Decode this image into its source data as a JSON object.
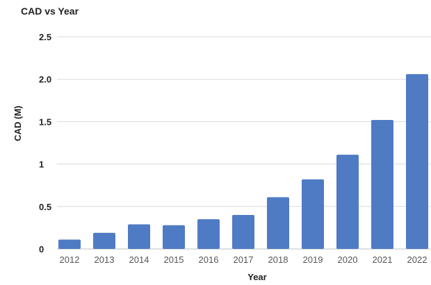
{
  "chart_data": {
    "type": "bar",
    "title": "CAD vs Year",
    "xlabel": "Year",
    "ylabel": "CAD (M)",
    "categories": [
      "2012",
      "2013",
      "2014",
      "2015",
      "2016",
      "2017",
      "2018",
      "2019",
      "2020",
      "2021",
      "2022"
    ],
    "values": [
      0.11,
      0.19,
      0.29,
      0.28,
      0.35,
      0.4,
      0.61,
      0.82,
      1.11,
      1.52,
      2.06
    ],
    "ylim": [
      0,
      2.5
    ],
    "yticks": [
      {
        "value": 0,
        "label": "0"
      },
      {
        "value": 0.5,
        "label": "0.5"
      },
      {
        "value": 1,
        "label": "1"
      },
      {
        "value": 1.5,
        "label": "1.5"
      },
      {
        "value": 2,
        "label": "2.0"
      },
      {
        "value": 2.5,
        "label": "2.5"
      }
    ],
    "grid": true,
    "legend": "none",
    "bar_color": "#4f7bc4",
    "grid_color": "#d9d9d9"
  }
}
